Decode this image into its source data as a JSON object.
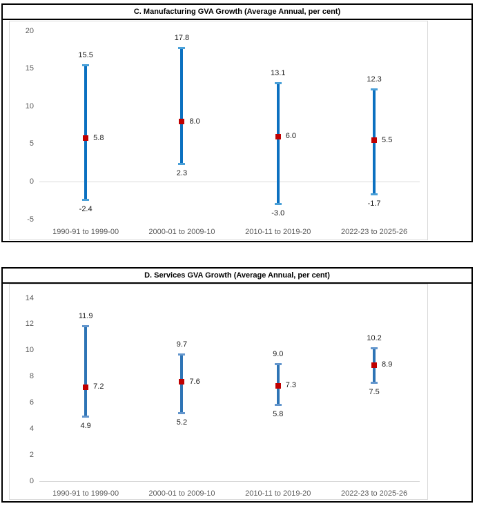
{
  "colors": {
    "panel_border": "#000000",
    "inner_border": "#d9d9d9",
    "zero_line": "#d9d9d9",
    "axis_text": "#595959",
    "data_label_text": "#1a1a1a",
    "marker_red": "#c00000",
    "line_blue_manufacturing": "#0b70c0",
    "cap_blue_manufacturing": "#4aa0d8",
    "line_blue_services": "#2e74b5",
    "cap_blue_services": "#6396cd"
  },
  "chart_data": [
    {
      "type": "stock-high-low-close",
      "title": "C. Manufacturing GVA Growth (Average Annual, per cent)",
      "categories": [
        "1990-91 to 1999-00",
        "2000-01 to 2009-10",
        "2010-11 to 2019-20",
        "2022-23 to 2025-26"
      ],
      "series": [
        {
          "name": "High",
          "values": [
            15.5,
            17.8,
            13.1,
            12.3
          ]
        },
        {
          "name": "Low",
          "values": [
            -2.4,
            2.3,
            -3.0,
            -1.7
          ]
        },
        {
          "name": "Close",
          "values": [
            5.8,
            8.0,
            6.0,
            5.5
          ]
        }
      ],
      "labels": {
        "high": [
          "15.5",
          "17.8",
          "13.1",
          "12.3"
        ],
        "low": [
          "-2.4",
          "2.3",
          "-3.0",
          "-1.7"
        ],
        "close": [
          "5.8",
          "8.0",
          "6.0",
          "5.5"
        ]
      },
      "ylim": [
        -5,
        20
      ],
      "ytick_values": [
        20,
        15,
        10,
        5,
        0,
        -5
      ],
      "ytick_labels": [
        "20",
        "15",
        "10",
        "5",
        "0",
        "-5"
      ],
      "grid": "zero-line-only",
      "legend": "none",
      "line_color": "#0b70c0",
      "cap_color": "#4aa0d8",
      "marker_color": "#c00000"
    },
    {
      "type": "stock-high-low-close",
      "title": "D. Services GVA Growth (Average Annual, per cent)",
      "categories": [
        "1990-91 to 1999-00",
        "2000-01 to 2009-10",
        "2010-11 to 2019-20",
        "2022-23 to 2025-26"
      ],
      "series": [
        {
          "name": "High",
          "values": [
            11.9,
            9.7,
            9.0,
            10.2
          ]
        },
        {
          "name": "Low",
          "values": [
            4.9,
            5.2,
            5.8,
            7.5
          ]
        },
        {
          "name": "Close",
          "values": [
            7.2,
            7.6,
            7.3,
            8.9
          ]
        }
      ],
      "labels": {
        "high": [
          "11.9",
          "9.7",
          "9.0",
          "10.2"
        ],
        "low": [
          "4.9",
          "5.2",
          "5.8",
          "7.5"
        ],
        "close": [
          "7.2",
          "7.6",
          "7.3",
          "8.9"
        ]
      },
      "ylim": [
        0,
        14
      ],
      "ytick_values": [
        14,
        12,
        10,
        8,
        6,
        4,
        2,
        0
      ],
      "ytick_labels": [
        "14",
        "12",
        "10",
        "8",
        "6",
        "4",
        "2",
        "0"
      ],
      "grid": "zero-line-only",
      "legend": "none",
      "line_color": "#2e74b5",
      "cap_color": "#6396cd",
      "marker_color": "#c00000"
    }
  ]
}
